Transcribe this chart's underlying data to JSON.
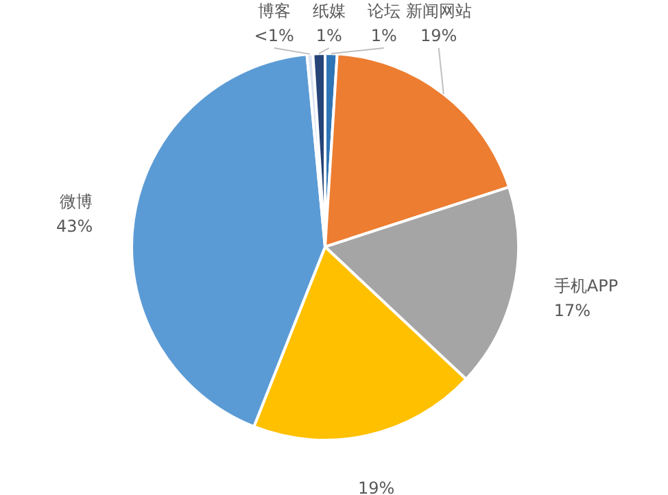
{
  "chart_data": {
    "type": "pie",
    "categories": [
      "论坛",
      "新闻网站",
      "手机APP",
      null,
      "微博",
      "博客",
      "纸媒"
    ],
    "values": [
      1,
      19,
      17,
      19,
      42.5,
      0.5,
      1
    ],
    "value_labels": [
      "1%",
      "19%",
      "17%",
      "19%",
      "43%",
      "<1%",
      "1%"
    ],
    "colors": [
      "#2e75b6",
      "#ed7d31",
      "#a5a5a5",
      "#ffc000",
      "#5b9bd5",
      "#dae3f3",
      "#264478"
    ],
    "legend": false
  }
}
